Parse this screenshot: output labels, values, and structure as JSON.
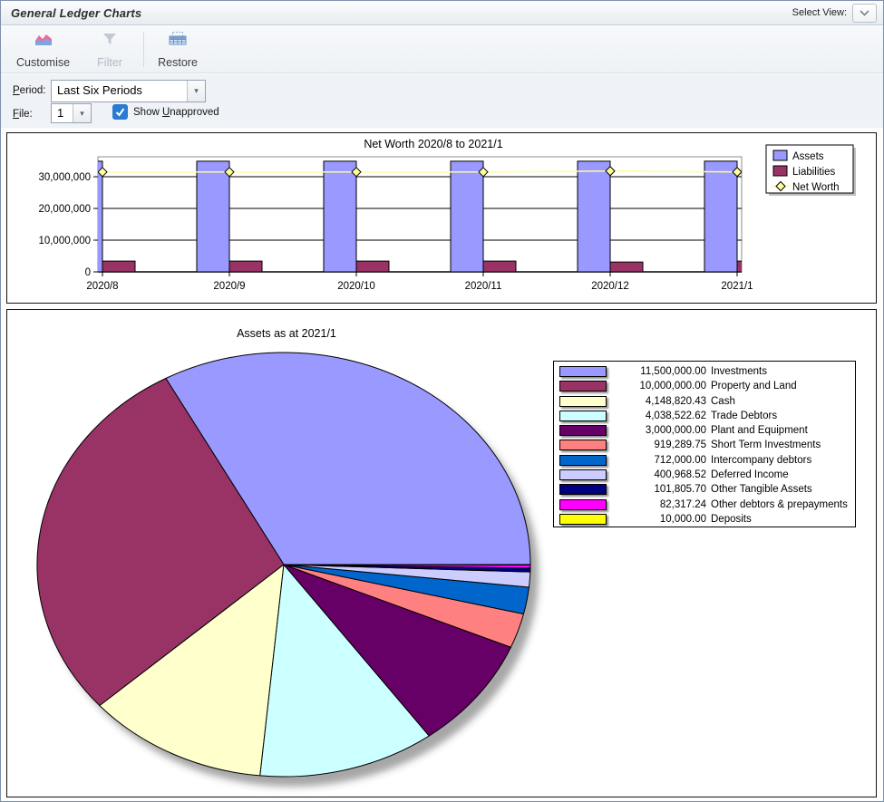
{
  "window": {
    "title": "General Ledger Charts",
    "select_view_label": "Select View:"
  },
  "toolbar": {
    "customise": "Customise",
    "filter": "Filter",
    "restore": "Restore"
  },
  "controls": {
    "period": {
      "accel": "P",
      "rest": "eriod:",
      "value": "Last Six Periods"
    },
    "file": {
      "accel": "F",
      "rest": "ile:",
      "value": "1"
    },
    "unapproved": {
      "prefix": "Show ",
      "accel": "U",
      "rest": "napproved",
      "checked": true
    }
  },
  "chart_data": [
    {
      "type": "bar",
      "title": "Net Worth 2020/8 to 2021/1",
      "categories": [
        "2020/8",
        "2020/9",
        "2020/10",
        "2020/11",
        "2020/12",
        "2021/1"
      ],
      "series": [
        {
          "name": "Assets",
          "kind": "bar",
          "color": "#9999FF",
          "values": [
            34900000,
            34900000,
            34900000,
            34900000,
            34900000,
            34913724
          ]
        },
        {
          "name": "Liabilities",
          "kind": "bar",
          "color": "#993366",
          "values": [
            3400000,
            3400000,
            3400000,
            3400000,
            3100000,
            3400000
          ]
        },
        {
          "name": "Net Worth",
          "kind": "line",
          "color": "#FFFF99",
          "marker": "diamond",
          "values": [
            31500000,
            31500000,
            31500000,
            31500000,
            31800000,
            31513724
          ]
        }
      ],
      "ylim": [
        0,
        36300000
      ],
      "yticks": [
        {
          "v": 0,
          "label": "0"
        },
        {
          "v": 10000000,
          "label": "10,000,000"
        },
        {
          "v": 20000000,
          "label": "20,000,000"
        },
        {
          "v": 30000000,
          "label": "30,000,000"
        }
      ],
      "grid": true,
      "legend_position": "right"
    },
    {
      "type": "pie",
      "title": "Assets as at 2021/1",
      "start_angle_deg": 0,
      "direction": "counterclockwise",
      "legend_position": "right",
      "slices": [
        {
          "label": "Investments",
          "value": 11500000.0,
          "display": "11,500,000.00",
          "color": "#9999FF"
        },
        {
          "label": "Property and Land",
          "value": 10000000.0,
          "display": "10,000,000.00",
          "color": "#993366"
        },
        {
          "label": "Cash",
          "value": 4148820.43,
          "display": "4,148,820.43",
          "color": "#FFFFCC"
        },
        {
          "label": "Trade Debtors",
          "value": 4038522.62,
          "display": "4,038,522.62",
          "color": "#CCFFFF"
        },
        {
          "label": "Plant and Equipment",
          "value": 3000000.0,
          "display": "3,000,000.00",
          "color": "#660066"
        },
        {
          "label": "Short Term Investments",
          "value": 919289.75,
          "display": "919,289.75",
          "color": "#FF8080"
        },
        {
          "label": "Intercompany debtors",
          "value": 712000.0,
          "display": "712,000.00",
          "color": "#0066CC"
        },
        {
          "label": "Deferred Income",
          "value": 400968.52,
          "display": "400,968.52",
          "color": "#CCCCFF"
        },
        {
          "label": "Other Tangible Assets",
          "value": 101805.7,
          "display": "101,805.70",
          "color": "#000080"
        },
        {
          "label": "Other debtors & prepayments",
          "value": 82317.24,
          "display": "82,317.24",
          "color": "#FF00FF"
        },
        {
          "label": "Deposits",
          "value": 10000.0,
          "display": "10,000.00",
          "color": "#FFFF00"
        }
      ]
    }
  ]
}
